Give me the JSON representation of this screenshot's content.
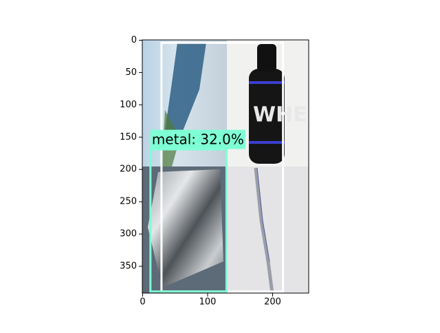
{
  "chart_data": {
    "type": "image",
    "xlim": [
      -0.5,
      255.5
    ],
    "ylim": [
      391.5,
      -0.5
    ],
    "xticks": [
      0,
      100,
      200
    ],
    "yticks": [
      0,
      50,
      100,
      150,
      200,
      250,
      300,
      350
    ],
    "boxes": [
      {
        "color": "#ffffff",
        "xmin": 29,
        "xmax": 216,
        "ymin": 4,
        "ymax": 389
      },
      {
        "label": "metal: 32.0%",
        "color": "#7fffd4",
        "xmin": 12,
        "xmax": 129,
        "ymin": 169,
        "ymax": 389
      }
    ]
  }
}
